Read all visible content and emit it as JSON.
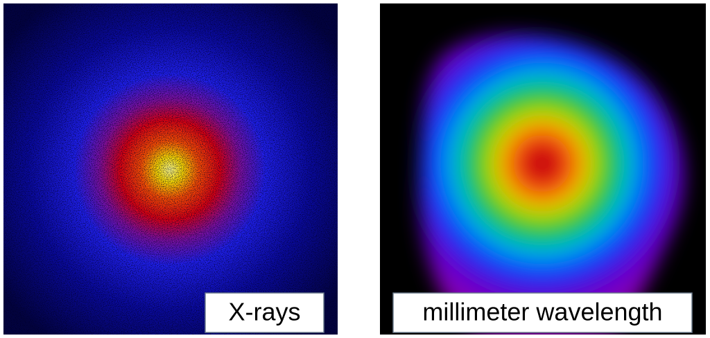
{
  "panels": [
    {
      "label": "X-rays"
    },
    {
      "label": "millimeter wavelength"
    }
  ]
}
